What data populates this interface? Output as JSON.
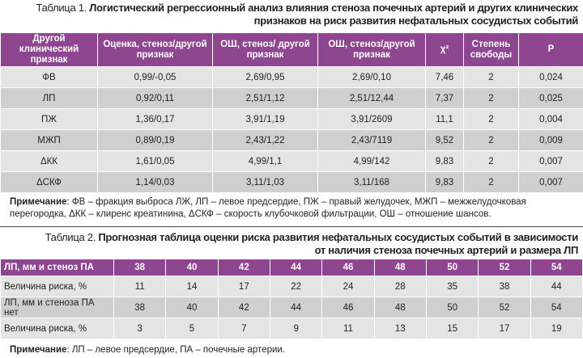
{
  "table1": {
    "label": "Таблица 1.",
    "title_lines": [
      "Логистический регрессионный анализ влияния стеноза почечных артерий и других клинических",
      "признаков на риск развития нефатальных сосудистых событий"
    ],
    "header": [
      "Другой клинический признак",
      "Оценка, стеноз/другой признак",
      "ОШ, стеноз/ другой признак",
      "ОШ, стеноз/другой признак",
      "χ²",
      "Степень свободы",
      "P"
    ],
    "rows": [
      [
        "ФВ",
        "0,99/-0,05",
        "2,69/0,95",
        "2,69/0,10",
        "7,46",
        "2",
        "0,024"
      ],
      [
        "ЛП",
        "0,92/0,11",
        "2,51/1,12",
        "2,51/12,44",
        "7,37",
        "2",
        "0,025"
      ],
      [
        "ПЖ",
        "1,36/0,17",
        "3,91/1,19",
        "3,91/2609",
        "11,1",
        "2",
        "0,004"
      ],
      [
        "МЖП",
        "0,89/0,19",
        "2,43/1,22",
        "2,43/7119",
        "9,52",
        "2",
        "0,009"
      ],
      [
        "ΔКК",
        "1,61/0,05",
        "4,99/1,1",
        "4,99/142",
        "9,83",
        "2",
        "0,007"
      ],
      [
        "ΔСКФ",
        "1,14/0,03",
        "3,11/1,03",
        "3,11/168",
        "9,83",
        "2",
        "0,007"
      ]
    ],
    "note_label": "Примечание",
    "note_text": ": ФВ – фракция выброса ЛЖ, ЛП – левое предсердие, ПЖ – правый желудочек, МЖП – межжелудочковая перегородка, ΔКК – клиренс креатинина, ΔСКФ – скорость клубочковой фильтрации, ОШ – отношение шансов."
  },
  "table2": {
    "label": "Таблица 2.",
    "title_lines": [
      "Прогнозная таблица оценки риска развития нефатальных сосудистых событий в зависимости",
      "от наличия стеноза почечных артерий и размера ЛП"
    ],
    "header": [
      "ЛП, мм и стеноз ПА",
      "38",
      "40",
      "42",
      "44",
      "46",
      "48",
      "50",
      "52",
      "54"
    ],
    "rows": [
      [
        "Величина риска, %",
        "11",
        "14",
        "17",
        "22",
        "24",
        "28",
        "35",
        "38",
        "44"
      ],
      [
        "ЛП, мм и стеноза ПА нет",
        "38",
        "40",
        "42",
        "44",
        "46",
        "48",
        "50",
        "52",
        "54"
      ],
      [
        "Величина риска, %",
        "3",
        "5",
        "7",
        "9",
        "11",
        "13",
        "15",
        "17",
        "19"
      ]
    ],
    "note_label": "Примечание",
    "note_text": ": ЛП – левое предсердие, ПА – почечные артерии."
  }
}
